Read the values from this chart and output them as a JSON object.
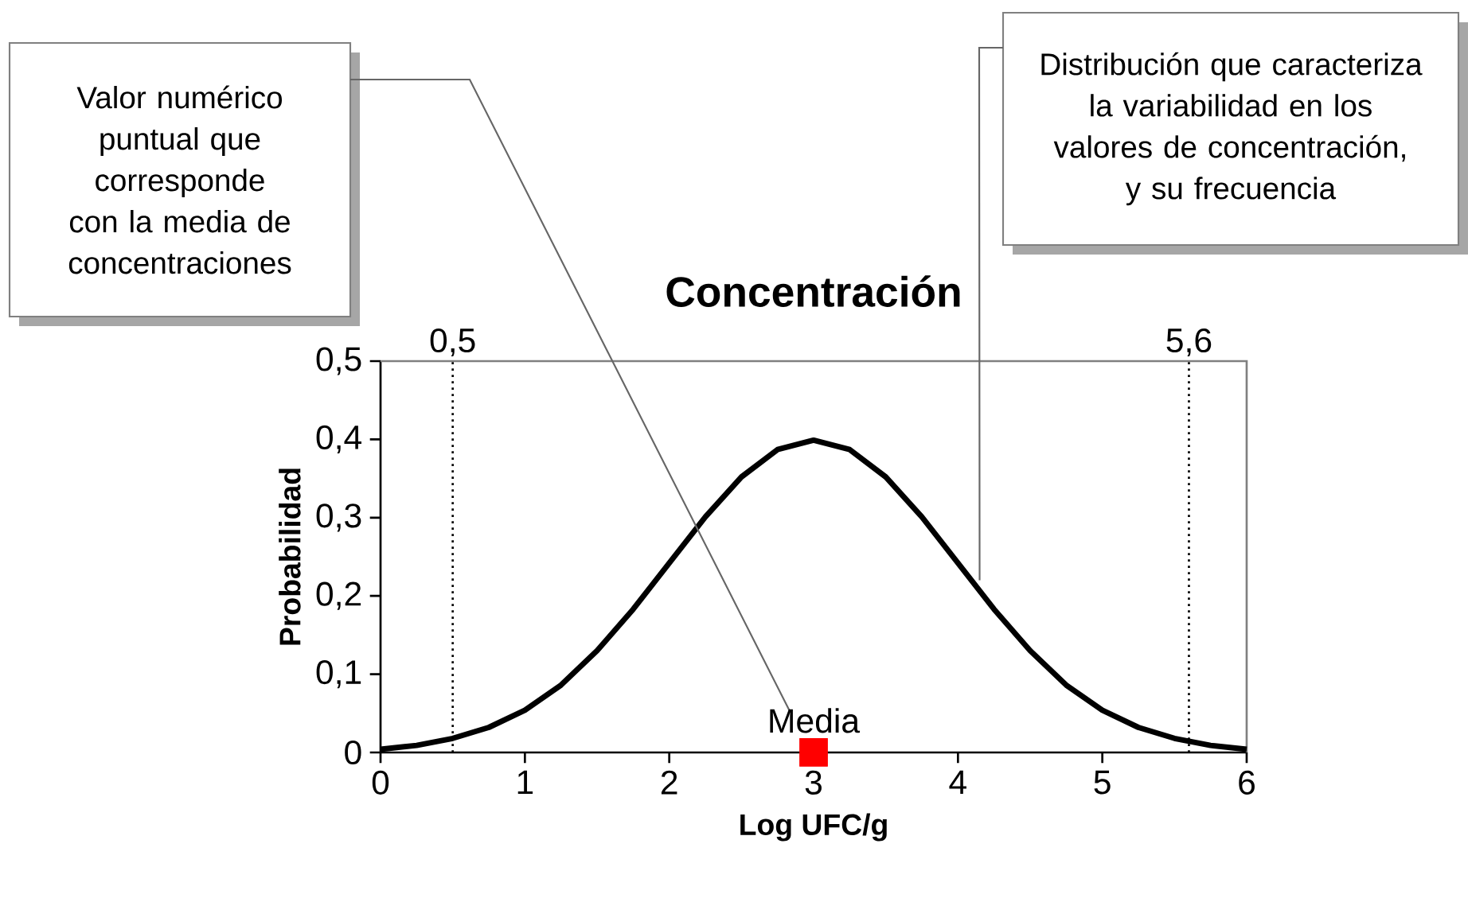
{
  "chart_data": {
    "type": "line",
    "title": "Concentración",
    "xlabel": "Log UFC/g",
    "ylabel": "Probabilidad",
    "xlim": [
      0,
      6
    ],
    "ylim": [
      0,
      0.5
    ],
    "xticks": [
      0,
      1,
      2,
      3,
      4,
      5,
      6
    ],
    "yticks": [
      {
        "value": 0,
        "label": "0"
      },
      {
        "value": 0.1,
        "label": "0,1"
      },
      {
        "value": 0.2,
        "label": "0,2"
      },
      {
        "value": 0.3,
        "label": "0,3"
      },
      {
        "value": 0.4,
        "label": "0,4"
      },
      {
        "value": 0.5,
        "label": "0,5"
      }
    ],
    "series": [
      {
        "color": "#000000",
        "marker": "none",
        "x": [
          0,
          0.25,
          0.5,
          0.75,
          1,
          1.25,
          1.5,
          1.75,
          2,
          2.25,
          2.5,
          2.75,
          3,
          3.25,
          3.5,
          3.75,
          4,
          4.25,
          4.5,
          4.75,
          5,
          5.25,
          5.5,
          5.75,
          6
        ],
        "values": [
          0.004,
          0.009,
          0.018,
          0.032,
          0.054,
          0.086,
          0.13,
          0.183,
          0.242,
          0.301,
          0.352,
          0.387,
          0.399,
          0.387,
          0.352,
          0.301,
          0.242,
          0.183,
          0.13,
          0.086,
          0.054,
          0.032,
          0.018,
          0.009,
          0.004
        ]
      },
      {
        "type": "scatter",
        "color": "#ff0000",
        "marker": "square",
        "x": [
          3
        ],
        "values": [
          0
        ]
      }
    ],
    "ref_lines": [
      {
        "axis": "x",
        "value": 0.5,
        "label": "0,5",
        "line_style": "dotted",
        "color": "#000000"
      },
      {
        "axis": "x",
        "value": 5.6,
        "label": "5,6",
        "line_style": "dotted",
        "color": "#000000"
      }
    ],
    "annotations": [
      "Valor numérico puntual que corresponde con la media de concentraciones",
      {
        "text": "Distribución que caracteriza la variabilidad en los valores de concentración, y su frecuencia",
        "x": 4.15,
        "y": 0.22
      },
      {
        "text": "Media",
        "x": 3,
        "y": 0
      }
    ]
  }
}
